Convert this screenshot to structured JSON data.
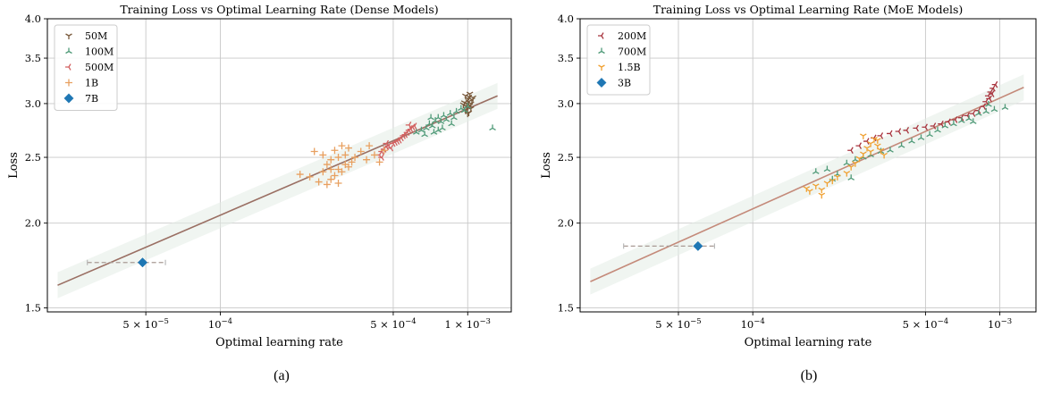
{
  "chart_data": [
    {
      "type": "scatter",
      "title": "Training Loss vs Optimal Learning Rate (Dense Models)",
      "xlabel": "Optimal learning rate",
      "ylabel": "Loss",
      "caption": "(a)",
      "x_scale": "log",
      "y_scale": "log",
      "xlim": [
        2e-05,
        0.0015
      ],
      "ylim": [
        1.48,
        4.0
      ],
      "x_ticks": [
        {
          "value": 5e-05,
          "base": "5 × 10",
          "exp": "−5"
        },
        {
          "value": 0.0001,
          "base": "10",
          "exp": "−4"
        },
        {
          "value": 0.0005,
          "base": "5 × 10",
          "exp": "−4"
        },
        {
          "value": 0.001,
          "base": "1 × 10",
          "exp": "−3"
        }
      ],
      "y_ticks": [
        {
          "value": 1.5,
          "label": "1.5"
        },
        {
          "value": 2.0,
          "label": "2.0"
        },
        {
          "value": 2.5,
          "label": "2.5"
        },
        {
          "value": 3.0,
          "label": "3.0"
        },
        {
          "value": 3.5,
          "label": "3.5"
        },
        {
          "value": 4.0,
          "label": "4.0"
        }
      ],
      "grid": true,
      "legend_position": "top-left",
      "fit_line": {
        "color": "#9a6f63",
        "x": [
          2.2e-05,
          0.00132
        ],
        "y": [
          1.62,
          3.08
        ],
        "band_factor": 1.045
      },
      "series": [
        {
          "name": "50M",
          "marker": "tri_down",
          "color": "#7a5a3c",
          "points": [
            [
              0.00098,
              3.08
            ],
            [
              0.001,
              3.05
            ],
            [
              0.00101,
              3.02
            ],
            [
              0.00099,
              3.0
            ],
            [
              0.00102,
              2.98
            ],
            [
              0.001,
              2.96
            ],
            [
              0.00103,
              2.95
            ],
            [
              0.00098,
              2.93
            ],
            [
              0.00101,
              2.91
            ],
            [
              0.00104,
              3.04
            ],
            [
              0.00097,
              3.01
            ],
            [
              0.00105,
              3.06
            ],
            [
              0.001,
              2.9
            ],
            [
              0.00102,
              3.1
            ],
            [
              0.00099,
              2.97
            ],
            [
              0.00096,
              2.99
            ],
            [
              0.00103,
              3.0
            ],
            [
              0.00101,
              3.07
            ]
          ]
        },
        {
          "name": "100M",
          "marker": "tri_up",
          "color": "#4f9a78",
          "points": [
            [
              0.00062,
              2.72
            ],
            [
              0.00065,
              2.74
            ],
            [
              0.00068,
              2.76
            ],
            [
              0.0007,
              2.8
            ],
            [
              0.00072,
              2.78
            ],
            [
              0.00074,
              2.83
            ],
            [
              0.00076,
              2.86
            ],
            [
              0.00078,
              2.82
            ],
            [
              0.0008,
              2.88
            ],
            [
              0.00082,
              2.84
            ],
            [
              0.00085,
              2.9
            ],
            [
              0.00088,
              2.86
            ],
            [
              0.0009,
              2.92
            ],
            [
              0.00094,
              2.95
            ],
            [
              0.00097,
              2.93
            ],
            [
              0.001,
              2.97
            ],
            [
              0.00067,
              2.7
            ],
            [
              0.00073,
              2.72
            ],
            [
              0.00079,
              2.76
            ],
            [
              0.00071,
              2.86
            ],
            [
              0.00076,
              2.74
            ],
            [
              0.00086,
              2.8
            ],
            [
              0.00126,
              2.76
            ]
          ]
        },
        {
          "name": "500M",
          "marker": "tri_left",
          "color": "#d26060",
          "points": [
            [
              0.00044,
              2.52
            ],
            [
              0.00045,
              2.55
            ],
            [
              0.00046,
              2.57
            ],
            [
              0.00047,
              2.59
            ],
            [
              0.00048,
              2.6
            ],
            [
              0.0005,
              2.62
            ],
            [
              0.00051,
              2.63
            ],
            [
              0.00052,
              2.64
            ],
            [
              0.00053,
              2.65
            ],
            [
              0.00054,
              2.67
            ],
            [
              0.00055,
              2.69
            ],
            [
              0.00056,
              2.7
            ],
            [
              0.00057,
              2.72
            ],
            [
              0.00058,
              2.74
            ],
            [
              0.00059,
              2.75
            ],
            [
              0.0006,
              2.77
            ],
            [
              0.00061,
              2.78
            ],
            [
              0.00045,
              2.5
            ],
            [
              0.00047,
              2.62
            ],
            [
              0.00049,
              2.58
            ],
            [
              0.00058,
              2.79
            ]
          ]
        },
        {
          "name": "1B",
          "marker": "plus",
          "color": "#e8a060",
          "points": [
            [
              0.00021,
              2.36
            ],
            [
              0.00023,
              2.34
            ],
            [
              0.00024,
              2.55
            ],
            [
              0.00025,
              2.3
            ],
            [
              0.00026,
              2.38
            ],
            [
              0.00026,
              2.52
            ],
            [
              0.00027,
              2.28
            ],
            [
              0.00027,
              2.44
            ],
            [
              0.00028,
              2.32
            ],
            [
              0.00028,
              2.48
            ],
            [
              0.00029,
              2.35
            ],
            [
              0.00029,
              2.56
            ],
            [
              0.0003,
              2.4
            ],
            [
              0.0003,
              2.5
            ],
            [
              0.00031,
              2.38
            ],
            [
              0.00031,
              2.6
            ],
            [
              0.00032,
              2.44
            ],
            [
              0.00032,
              2.52
            ],
            [
              0.00033,
              2.42
            ],
            [
              0.00033,
              2.58
            ],
            [
              0.00034,
              2.46
            ],
            [
              0.00035,
              2.5
            ],
            [
              0.00037,
              2.55
            ],
            [
              0.00039,
              2.48
            ],
            [
              0.0004,
              2.6
            ],
            [
              0.00042,
              2.52
            ],
            [
              0.00044,
              2.46
            ],
            [
              0.00046,
              2.56
            ],
            [
              0.00028,
              2.4
            ],
            [
              0.0003,
              2.29
            ]
          ]
        },
        {
          "name": "7B",
          "marker": "diamond",
          "color": "#1f77b4",
          "points": [
            [
              4.85e-05,
              1.75
            ]
          ],
          "xerr": [
            2.9e-05,
            6e-05
          ]
        }
      ]
    },
    {
      "type": "scatter",
      "title": "Training Loss vs Optimal Learning Rate (MoE Models)",
      "xlabel": "Optimal learning rate",
      "ylabel": "Loss",
      "caption": "(b)",
      "x_scale": "log",
      "y_scale": "log",
      "xlim": [
        2e-05,
        0.0014
      ],
      "ylim": [
        1.48,
        4.0
      ],
      "x_ticks": [
        {
          "value": 5e-05,
          "base": "5 × 10",
          "exp": "−5"
        },
        {
          "value": 0.0001,
          "base": "10",
          "exp": "−4"
        },
        {
          "value": 0.0005,
          "base": "5 × 10",
          "exp": "−4"
        },
        {
          "value": 0.001,
          "base": "10",
          "exp": "−3"
        }
      ],
      "y_ticks": [
        {
          "value": 1.5,
          "label": "1.5"
        },
        {
          "value": 2.0,
          "label": "2.0"
        },
        {
          "value": 2.5,
          "label": "2.5"
        },
        {
          "value": 3.0,
          "label": "3.0"
        },
        {
          "value": 3.5,
          "label": "3.5"
        },
        {
          "value": 4.0,
          "label": "4.0"
        }
      ],
      "grid": true,
      "legend_position": "top-left",
      "fit_line": {
        "color": "#c48a7a",
        "x": [
          2.2e-05,
          0.00125
        ],
        "y": [
          1.64,
          3.17
        ],
        "band_factor": 1.045
      },
      "series": [
        {
          "name": "200M",
          "marker": "tri_left",
          "color": "#a8343e",
          "points": [
            [
              0.00025,
              2.56
            ],
            [
              0.00027,
              2.6
            ],
            [
              0.00029,
              2.64
            ],
            [
              0.00031,
              2.67
            ],
            [
              0.00033,
              2.69
            ],
            [
              0.00036,
              2.71
            ],
            [
              0.00039,
              2.73
            ],
            [
              0.00042,
              2.74
            ],
            [
              0.00046,
              2.76
            ],
            [
              0.0005,
              2.77
            ],
            [
              0.00054,
              2.78
            ],
            [
              0.00058,
              2.8
            ],
            [
              0.00062,
              2.82
            ],
            [
              0.00066,
              2.84
            ],
            [
              0.0007,
              2.86
            ],
            [
              0.00074,
              2.88
            ],
            [
              0.00078,
              2.9
            ],
            [
              0.00082,
              2.93
            ],
            [
              0.00086,
              2.97
            ],
            [
              0.00088,
              3.02
            ],
            [
              0.0009,
              3.08
            ],
            [
              0.00092,
              3.12
            ],
            [
              0.00094,
              3.16
            ],
            [
              0.00096,
              3.2
            ],
            [
              0.00091,
              3.05
            ],
            [
              0.00093,
              3.1
            ]
          ]
        },
        {
          "name": "700M",
          "marker": "tri_up",
          "color": "#4f9a78",
          "points": [
            [
              0.00018,
              2.38
            ],
            [
              0.0002,
              2.4
            ],
            [
              0.00022,
              2.36
            ],
            [
              0.00024,
              2.45
            ],
            [
              0.00026,
              2.48
            ],
            [
              0.00028,
              2.5
            ],
            [
              0.0003,
              2.52
            ],
            [
              0.00033,
              2.55
            ],
            [
              0.00036,
              2.56
            ],
            [
              0.0004,
              2.6
            ],
            [
              0.00044,
              2.64
            ],
            [
              0.00048,
              2.67
            ],
            [
              0.00052,
              2.7
            ],
            [
              0.00056,
              2.74
            ],
            [
              0.0006,
              2.78
            ],
            [
              0.00065,
              2.8
            ],
            [
              0.0007,
              2.83
            ],
            [
              0.00075,
              2.85
            ],
            [
              0.00082,
              2.9
            ],
            [
              0.00088,
              2.92
            ],
            [
              0.00095,
              2.94
            ],
            [
              0.00105,
              2.96
            ],
            [
              0.0009,
              2.99
            ],
            [
              0.00078,
              2.82
            ],
            [
              0.00021,
              2.32
            ],
            [
              0.00025,
              2.33
            ]
          ]
        },
        {
          "name": "1.5B",
          "marker": "tri_down",
          "color": "#f0a030",
          "points": [
            [
              0.000165,
              2.25
            ],
            [
              0.00017,
              2.23
            ],
            [
              0.00018,
              2.27
            ],
            [
              0.00019,
              2.2
            ],
            [
              0.0002,
              2.29
            ],
            [
              0.00021,
              2.31
            ],
            [
              0.00022,
              2.34
            ],
            [
              0.00024,
              2.37
            ],
            [
              0.00025,
              2.42
            ],
            [
              0.00026,
              2.45
            ],
            [
              0.00027,
              2.49
            ],
            [
              0.00028,
              2.53
            ],
            [
              0.00029,
              2.58
            ],
            [
              0.0003,
              2.62
            ],
            [
              0.00031,
              2.66
            ],
            [
              0.00032,
              2.6
            ],
            [
              0.00033,
              2.56
            ],
            [
              0.00034,
              2.52
            ],
            [
              0.00028,
              2.69
            ],
            [
              0.0003,
              2.55
            ],
            [
              0.00019,
              2.24
            ],
            [
              0.00032,
              2.65
            ]
          ]
        },
        {
          "name": "3B",
          "marker": "diamond",
          "color": "#1f77b4",
          "points": [
            [
              6e-05,
              1.85
            ]
          ],
          "xerr": [
            3e-05,
            7e-05
          ]
        }
      ]
    }
  ]
}
